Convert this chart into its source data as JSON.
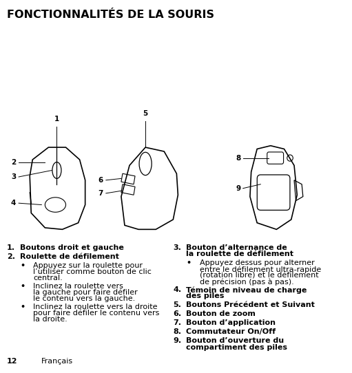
{
  "title": "FONCTIONNALITÉS DE LA SOURIS",
  "footer_page": "12",
  "footer_lang": "Français",
  "bg_color": "#ffffff",
  "text_color": "#000000",
  "title_fontsize": 11.5,
  "body_fontsize": 8.0,
  "left_items": [
    {
      "num": "1.",
      "text": "Boutons droit et gauche",
      "bold": true,
      "indent": 0
    },
    {
      "num": "2.",
      "text": "Roulette de défilement",
      "bold": true,
      "indent": 0
    },
    {
      "num": "•",
      "text": "Appuyez sur la roulette pour\nl’utiliser comme bouton de clic\ncentral.",
      "bold": false,
      "indent": 1
    },
    {
      "num": "•",
      "text": "Inclinez la roulette vers\nla gauche pour faire défiler\nle contenu vers la gauche.",
      "bold": false,
      "indent": 1
    },
    {
      "num": "•",
      "text": "Inclinez la roulette vers la droite\npour faire défiler le contenu vers\nla droite.",
      "bold": false,
      "indent": 1
    }
  ],
  "right_items": [
    {
      "num": "3.",
      "text": "Bouton d’alternance de\nla roulette de défilement",
      "bold": true,
      "indent": 0
    },
    {
      "num": "•",
      "text": "Appuyez dessus pour alterner\nentre le défilement ultra-rapide\n(rotation libre) et le défilement\nde précision (pas à pas).",
      "bold": false,
      "indent": 1
    },
    {
      "num": "4.",
      "text": "Témoin de niveau de charge\ndes piles",
      "bold": true,
      "indent": 0
    },
    {
      "num": "5.",
      "text": "Boutons Précédent et Suivant",
      "bold": true,
      "indent": 0
    },
    {
      "num": "6.",
      "text": "Bouton de zoom",
      "bold": true,
      "indent": 0
    },
    {
      "num": "7.",
      "text": "Bouton d’application",
      "bold": true,
      "indent": 0
    },
    {
      "num": "8.",
      "text": "Commutateur On/Off",
      "bold": true,
      "indent": 0
    },
    {
      "num": "9.",
      "text": "Bouton d’ouverture du\ncompartiment des piles",
      "bold": true,
      "indent": 0
    }
  ]
}
